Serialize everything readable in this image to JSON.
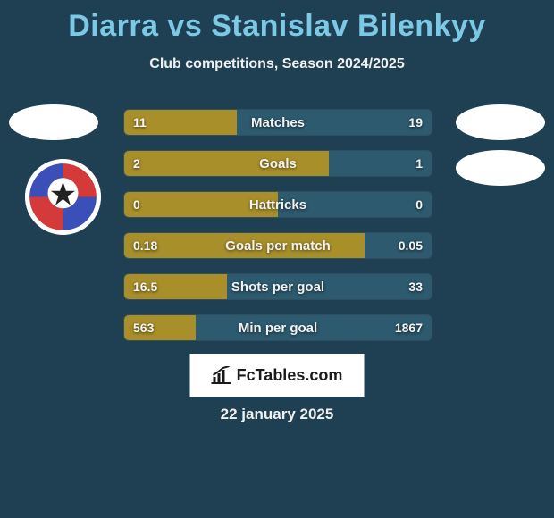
{
  "title": "Diarra vs Stanislav Bilenkyy",
  "subtitle": "Club competitions, Season 2024/2025",
  "date": "22 january 2025",
  "fctables_label": "FcTables.com",
  "colors": {
    "background": "#1f4052",
    "title": "#7cc9e6",
    "bar_left": "#a88f2a",
    "bar_right": "#2d5a6e",
    "text": "#f2f2f2"
  },
  "bar_style": {
    "height": 30,
    "radius": 6,
    "gap": 16,
    "fontsize_label": 15,
    "fontsize_value": 14
  },
  "stats": [
    {
      "label": "Matches",
      "left_val": "11",
      "right_val": "19",
      "left_pct": 36.7,
      "right_pct": 63.3
    },
    {
      "label": "Goals",
      "left_val": "2",
      "right_val": "1",
      "left_pct": 66.7,
      "right_pct": 33.3
    },
    {
      "label": "Hattricks",
      "left_val": "0",
      "right_val": "0",
      "left_pct": 50.0,
      "right_pct": 50.0
    },
    {
      "label": "Goals per match",
      "left_val": "0.18",
      "right_val": "0.05",
      "left_pct": 78.3,
      "right_pct": 21.7
    },
    {
      "label": "Shots per goal",
      "left_val": "16.5",
      "right_val": "33",
      "left_pct": 33.3,
      "right_pct": 66.7
    },
    {
      "label": "Min per goal",
      "left_val": "563",
      "right_val": "1867",
      "left_pct": 23.2,
      "right_pct": 76.8
    }
  ]
}
